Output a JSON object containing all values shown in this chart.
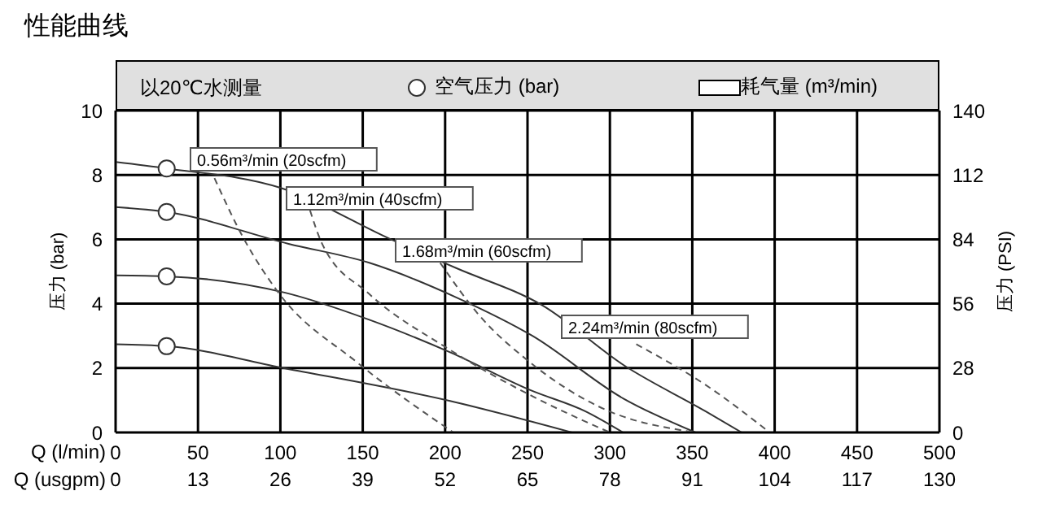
{
  "chart_data": {
    "type": "line",
    "title": "性能曲线",
    "xlabel": "Q (l/min)",
    "x2label": "Q (usgpm)",
    "ylabel": "压力 (bar)",
    "y2label": "压力 (PSI)",
    "xlim": [
      0,
      500
    ],
    "xticks": [
      0,
      50,
      100,
      150,
      200,
      250,
      300,
      350,
      400,
      450,
      500
    ],
    "x2lim": [
      0,
      130
    ],
    "x2ticks": [
      0,
      13,
      26,
      39,
      52,
      65,
      78,
      91,
      104,
      117,
      130
    ],
    "ylim": [
      0,
      10
    ],
    "yticks": [
      0,
      2,
      4,
      6,
      8,
      10
    ],
    "y2lim": [
      0,
      140
    ],
    "y2ticks": [
      0,
      28,
      56,
      84,
      112,
      140
    ],
    "grid": true,
    "legend": "top",
    "series": [
      {
        "color": "#333333",
        "line_style": "solid",
        "marker": "none",
        "x": [
          0,
          31,
          100,
          167,
          207,
          259,
          309,
          358,
          380
        ],
        "values": [
          8.4,
          8.2,
          7.6,
          6.0,
          5.1,
          3.95,
          2.07,
          0.66,
          0
        ]
      },
      {
        "color": "#333333",
        "line_style": "solid",
        "marker": "none",
        "x": [
          0,
          31,
          105,
          154,
          207,
          253,
          308,
          352
        ],
        "values": [
          7.0,
          6.85,
          5.86,
          5.27,
          4.19,
          3.0,
          1.06,
          0
        ]
      },
      {
        "color": "#333333",
        "line_style": "solid",
        "marker": "none",
        "x": [
          0,
          31,
          103,
          154,
          203,
          252,
          285,
          308
        ],
        "values": [
          4.88,
          4.85,
          4.34,
          3.5,
          2.49,
          1.31,
          0.66,
          0
        ]
      },
      {
        "color": "#333333",
        "line_style": "solid",
        "marker": "none",
        "x": [
          0,
          31,
          103,
          203,
          277
        ],
        "values": [
          2.74,
          2.68,
          1.99,
          0.98,
          0
        ]
      },
      {
        "color": "#555555",
        "line_style": "dashed",
        "marker": "none",
        "x": [
          60,
          78,
          98,
          147,
          205
        ],
        "values": [
          7.9,
          6.0,
          4.4,
          2.16,
          0
        ]
      },
      {
        "color": "#555555",
        "line_style": "dashed",
        "marker": "none",
        "x": [
          118,
          125,
          154,
          200,
          252,
          300
        ],
        "values": [
          6.9,
          5.9,
          4.3,
          2.66,
          1.15,
          0
        ]
      },
      {
        "color": "#555555",
        "line_style": "dashed",
        "marker": "none",
        "x": [
          197,
          220,
          252,
          293,
          352
        ],
        "values": [
          5.27,
          3.68,
          2.16,
          0.81,
          0
        ]
      },
      {
        "color": "#555555",
        "line_style": "dashed",
        "marker": "none",
        "x": [
          316,
          358,
          397
        ],
        "values": [
          2.74,
          1.48,
          0
        ]
      },
      {
        "type": "scatter",
        "name": "空气压力 (bar)",
        "color": "#333333",
        "marker": "circle",
        "x": [
          31,
          31,
          31,
          31
        ],
        "values": [
          8.2,
          6.85,
          4.85,
          2.68
        ]
      }
    ],
    "annotations": [
      "以20℃水测量",
      "耗气量 (m³/min)",
      "0.56m³/min (20scfm)",
      "1.12m³/min (40scfm)",
      "1.68m³/min (60scfm)",
      "2.24m³/min (80scfm)"
    ]
  }
}
